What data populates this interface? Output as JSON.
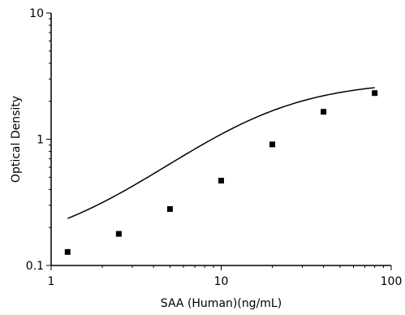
{
  "chart_data": {
    "type": "scatter",
    "title": "",
    "xlabel": "SAA (Human)(ng/mL)",
    "ylabel": "Optical Density",
    "x_scale": "log",
    "y_scale": "log",
    "xlim": [
      1,
      100
    ],
    "ylim": [
      0.1,
      10
    ],
    "x_ticks": [
      1,
      10,
      100
    ],
    "x_tick_labels": [
      "1",
      "10",
      "100"
    ],
    "y_ticks": [
      0.1,
      1,
      10
    ],
    "y_tick_labels": [
      "0.1",
      "1",
      "10"
    ],
    "grid": false,
    "legend": "none",
    "series": [
      {
        "x": [
          1.25,
          2.5,
          5,
          10,
          20,
          40,
          80
        ],
        "y": [
          0.128,
          0.178,
          0.28,
          0.47,
          0.91,
          1.65,
          2.32
        ],
        "marker": "square",
        "color": "#000000",
        "fit_curve": "4PL",
        "fit": {
          "bottom": 0.13,
          "top": 2.9,
          "ec50": 16.5,
          "hill": 1.25
        }
      }
    ]
  }
}
